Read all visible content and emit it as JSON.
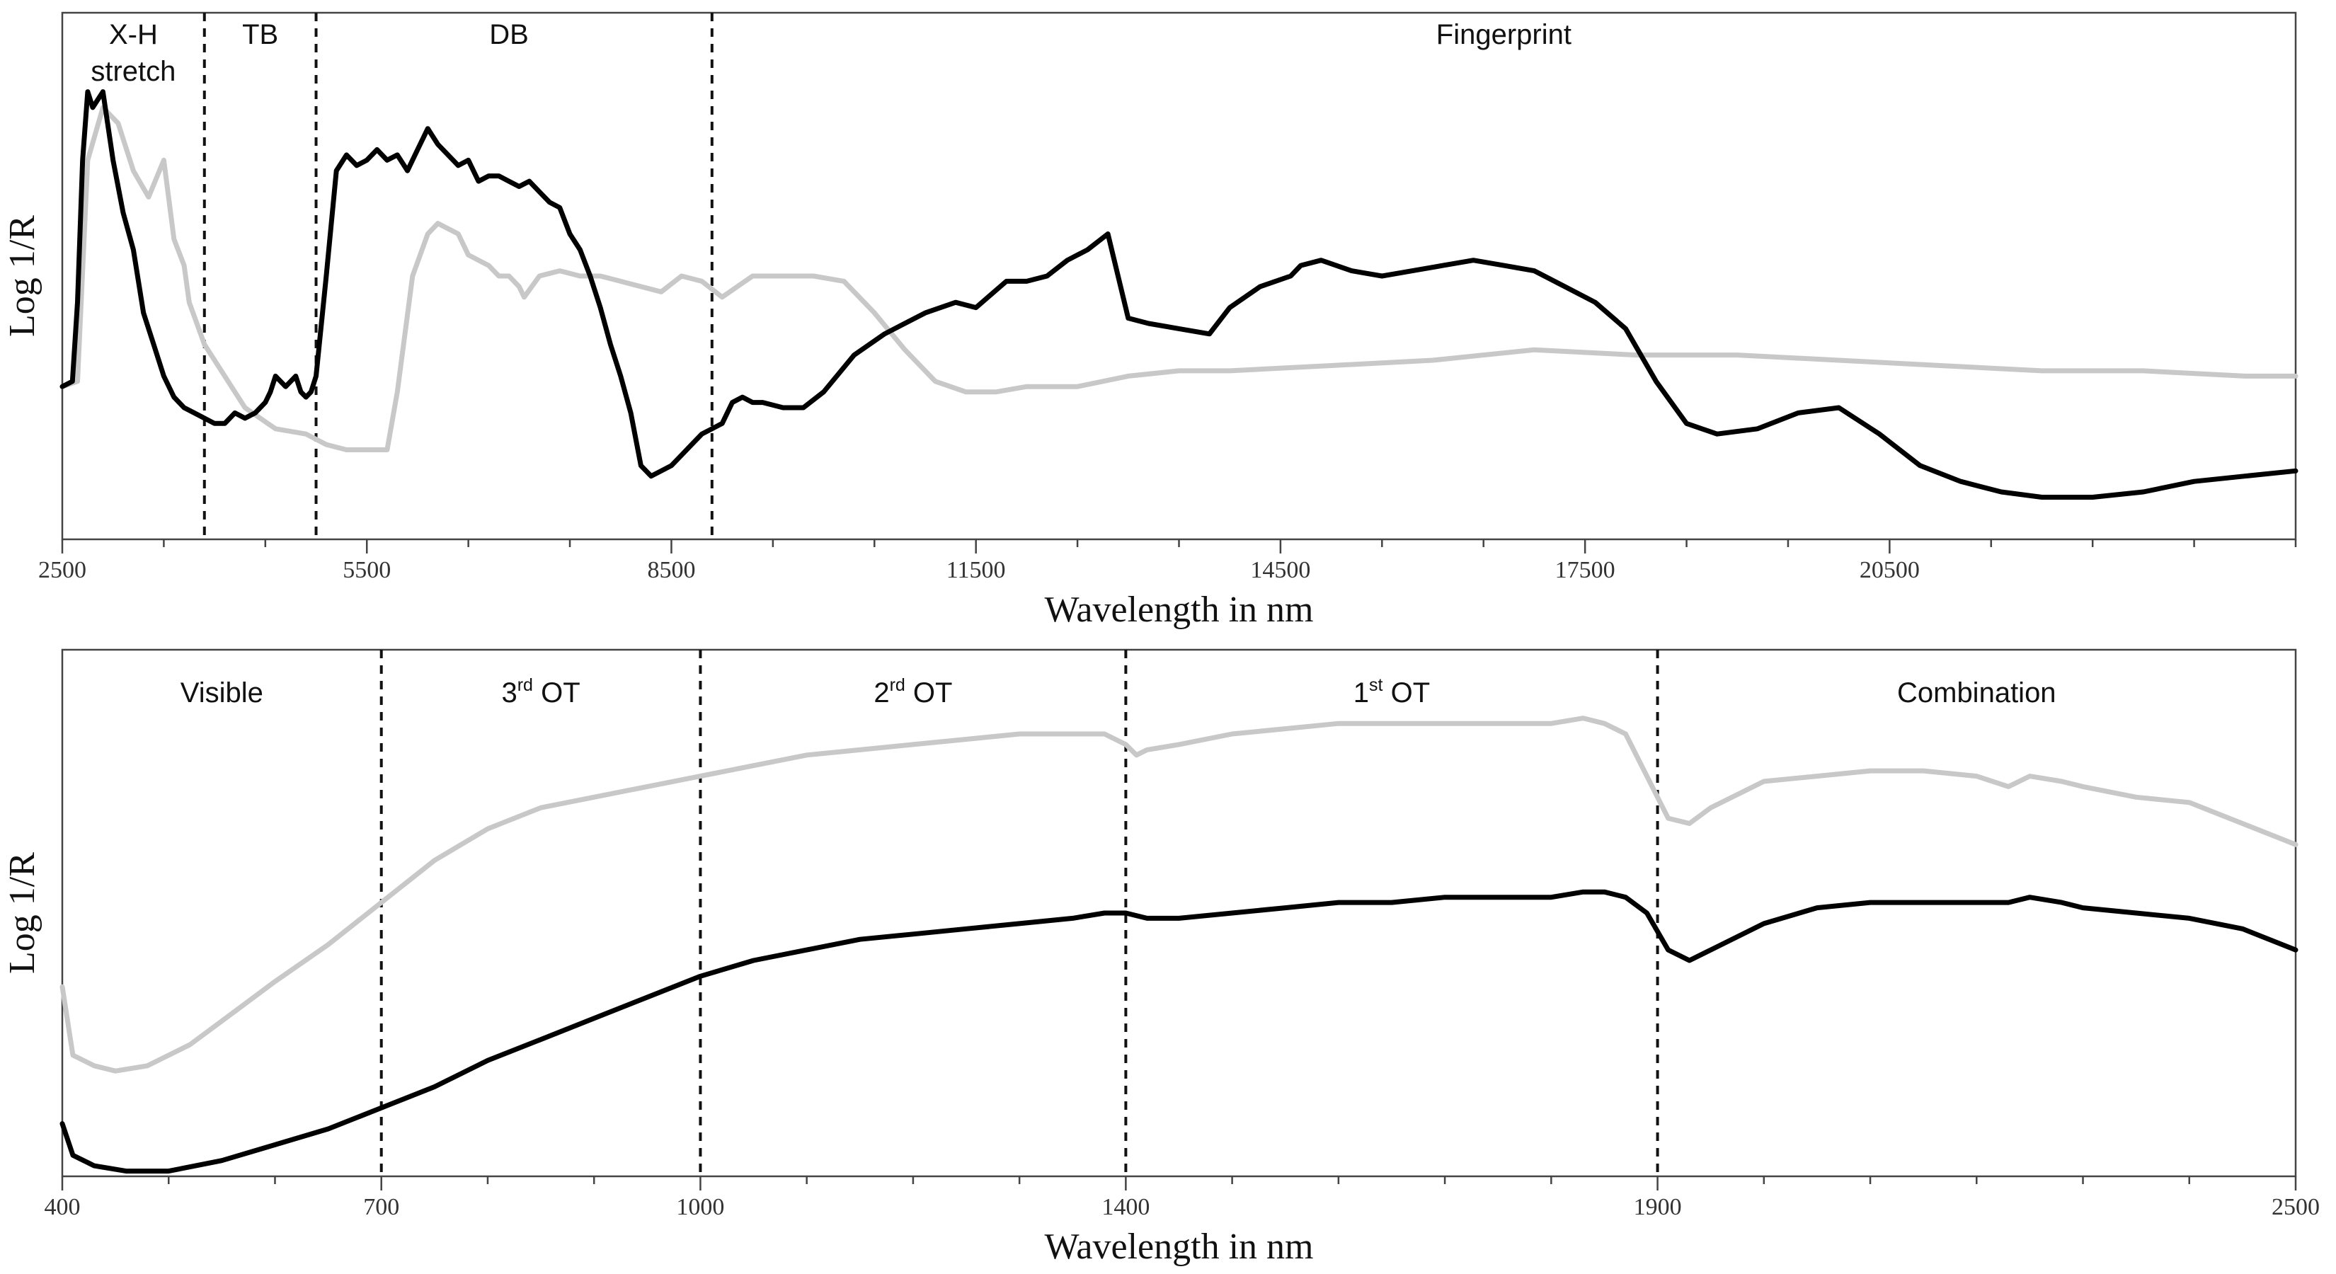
{
  "charts": [
    {
      "id": "top",
      "type": "line",
      "xlabel": "Wavelength in nm",
      "ylabel": "Log 1/R",
      "xlim": [
        2500,
        24500
      ],
      "ylim": [
        0,
        1
      ],
      "major_ticks": [
        2500,
        5500,
        8500,
        11500,
        14500,
        17500,
        20500
      ],
      "minor_tick_step": 1000,
      "dividers": [
        3900,
        5000,
        8900
      ],
      "regions": [
        {
          "lines": [
            "X-H",
            "stretch"
          ],
          "x": 3200
        },
        {
          "lines": [
            "TB"
          ],
          "x": 4450
        },
        {
          "lines": [
            "DB"
          ],
          "x": 6900
        },
        {
          "lines": [
            "Fingerprint"
          ],
          "x": 16700
        }
      ],
      "series": [
        {
          "color": "#c8c8c8",
          "x": [
            2500,
            2650,
            2750,
            2900,
            3050,
            3200,
            3350,
            3500,
            3600,
            3700,
            3750,
            3900,
            4100,
            4300,
            4600,
            4900,
            5100,
            5300,
            5500,
            5700,
            5800,
            5950,
            6100,
            6200,
            6400,
            6500,
            6700,
            6800,
            6900,
            7000,
            7050,
            7200,
            7400,
            7600,
            7800,
            8000,
            8200,
            8400,
            8600,
            8800,
            9000,
            9300,
            9600,
            9900,
            10200,
            10500,
            10800,
            11100,
            11400,
            11700,
            12000,
            12500,
            13000,
            13500,
            14000,
            15000,
            16000,
            17000,
            18000,
            19000,
            20000,
            21000,
            22000,
            23000,
            24000,
            24500
          ],
          "y": [
            0.29,
            0.3,
            0.72,
            0.82,
            0.79,
            0.7,
            0.65,
            0.72,
            0.57,
            0.52,
            0.45,
            0.37,
            0.31,
            0.25,
            0.21,
            0.2,
            0.18,
            0.17,
            0.17,
            0.17,
            0.28,
            0.5,
            0.58,
            0.6,
            0.58,
            0.54,
            0.52,
            0.5,
            0.5,
            0.48,
            0.46,
            0.5,
            0.51,
            0.5,
            0.5,
            0.49,
            0.48,
            0.47,
            0.5,
            0.49,
            0.46,
            0.5,
            0.5,
            0.5,
            0.49,
            0.43,
            0.36,
            0.3,
            0.28,
            0.28,
            0.29,
            0.29,
            0.31,
            0.32,
            0.32,
            0.33,
            0.34,
            0.36,
            0.35,
            0.35,
            0.34,
            0.33,
            0.32,
            0.32,
            0.31,
            0.31
          ]
        },
        {
          "color": "#000000",
          "x": [
            2500,
            2600,
            2650,
            2700,
            2750,
            2800,
            2900,
            3000,
            3100,
            3200,
            3300,
            3400,
            3500,
            3600,
            3700,
            3800,
            3900,
            4000,
            4100,
            4200,
            4300,
            4400,
            4500,
            4550,
            4600,
            4700,
            4800,
            4850,
            4900,
            4950,
            5000,
            5100,
            5200,
            5300,
            5400,
            5500,
            5600,
            5700,
            5800,
            5900,
            6000,
            6100,
            6200,
            6300,
            6400,
            6500,
            6600,
            6700,
            6800,
            6900,
            7000,
            7100,
            7200,
            7300,
            7400,
            7500,
            7600,
            7700,
            7800,
            7900,
            8000,
            8100,
            8200,
            8300,
            8400,
            8500,
            8600,
            8700,
            8800,
            8900,
            9000,
            9100,
            9200,
            9300,
            9400,
            9600,
            9800,
            10000,
            10300,
            10600,
            11000,
            11300,
            11500,
            11800,
            12000,
            12200,
            12400,
            12600,
            12800,
            13000,
            13200,
            13500,
            13800,
            14000,
            14300,
            14600,
            14700,
            14900,
            15200,
            15500,
            15800,
            16100,
            16400,
            16700,
            17000,
            17300,
            17600,
            17900,
            18200,
            18500,
            18800,
            19200,
            19600,
            20000,
            20400,
            20800,
            21200,
            21600,
            22000,
            22500,
            23000,
            23500,
            24000,
            24500
          ],
          "y": [
            0.29,
            0.3,
            0.45,
            0.72,
            0.85,
            0.82,
            0.85,
            0.72,
            0.62,
            0.55,
            0.43,
            0.37,
            0.31,
            0.27,
            0.25,
            0.24,
            0.23,
            0.22,
            0.22,
            0.24,
            0.23,
            0.24,
            0.26,
            0.28,
            0.31,
            0.29,
            0.31,
            0.28,
            0.27,
            0.28,
            0.31,
            0.5,
            0.7,
            0.73,
            0.71,
            0.72,
            0.74,
            0.72,
            0.73,
            0.7,
            0.74,
            0.78,
            0.75,
            0.73,
            0.71,
            0.72,
            0.68,
            0.69,
            0.69,
            0.68,
            0.67,
            0.68,
            0.66,
            0.64,
            0.63,
            0.58,
            0.55,
            0.5,
            0.44,
            0.37,
            0.31,
            0.24,
            0.14,
            0.12,
            0.13,
            0.14,
            0.16,
            0.18,
            0.2,
            0.21,
            0.22,
            0.26,
            0.27,
            0.26,
            0.26,
            0.25,
            0.25,
            0.28,
            0.35,
            0.39,
            0.43,
            0.45,
            0.44,
            0.49,
            0.49,
            0.5,
            0.53,
            0.55,
            0.58,
            0.42,
            0.41,
            0.4,
            0.39,
            0.44,
            0.48,
            0.5,
            0.52,
            0.53,
            0.51,
            0.5,
            0.51,
            0.52,
            0.53,
            0.52,
            0.51,
            0.48,
            0.45,
            0.4,
            0.3,
            0.22,
            0.2,
            0.21,
            0.24,
            0.25,
            0.2,
            0.14,
            0.11,
            0.09,
            0.08,
            0.08,
            0.09,
            0.11,
            0.12,
            0.13
          ]
        }
      ]
    },
    {
      "id": "bottom",
      "type": "line",
      "xlabel": "Wavelength in nm",
      "ylabel": "Log 1/R",
      "xlim": [
        400,
        2500
      ],
      "ylim": [
        0,
        1
      ],
      "major_ticks": [
        400,
        700,
        1000,
        1400,
        1900,
        2500
      ],
      "minor_tick_step": 100,
      "dividers": [
        700,
        1000,
        1400,
        1900
      ],
      "regions": [
        {
          "lines": [
            "Visible"
          ],
          "x": 550
        },
        {
          "pre": "3",
          "sup": "rd",
          "post": " OT",
          "x": 850
        },
        {
          "pre": "2",
          "sup": "rd",
          "post": " OT",
          "x": 1200
        },
        {
          "pre": "1",
          "sup": "st",
          "post": " OT",
          "x": 1650
        },
        {
          "lines": [
            "Combination"
          ],
          "x": 2200
        }
      ],
      "series": [
        {
          "color": "#c8c8c8",
          "x": [
            400,
            410,
            430,
            450,
            480,
            520,
            560,
            600,
            650,
            700,
            750,
            800,
            850,
            900,
            950,
            1000,
            1050,
            1100,
            1150,
            1200,
            1250,
            1300,
            1350,
            1380,
            1400,
            1410,
            1420,
            1450,
            1500,
            1550,
            1600,
            1650,
            1700,
            1750,
            1800,
            1830,
            1850,
            1870,
            1890,
            1910,
            1930,
            1950,
            2000,
            2050,
            2100,
            2150,
            2200,
            2230,
            2250,
            2280,
            2300,
            2350,
            2400,
            2450,
            2500
          ],
          "y": [
            0.36,
            0.23,
            0.21,
            0.2,
            0.21,
            0.25,
            0.31,
            0.37,
            0.44,
            0.52,
            0.6,
            0.66,
            0.7,
            0.72,
            0.74,
            0.76,
            0.78,
            0.8,
            0.81,
            0.82,
            0.83,
            0.84,
            0.84,
            0.84,
            0.82,
            0.8,
            0.81,
            0.82,
            0.84,
            0.85,
            0.86,
            0.86,
            0.86,
            0.86,
            0.86,
            0.87,
            0.86,
            0.84,
            0.76,
            0.68,
            0.67,
            0.7,
            0.75,
            0.76,
            0.77,
            0.77,
            0.76,
            0.74,
            0.76,
            0.75,
            0.74,
            0.72,
            0.71,
            0.67,
            0.63
          ]
        },
        {
          "color": "#000000",
          "x": [
            400,
            410,
            430,
            460,
            500,
            550,
            600,
            650,
            700,
            750,
            800,
            850,
            900,
            950,
            1000,
            1050,
            1100,
            1150,
            1200,
            1250,
            1300,
            1350,
            1380,
            1400,
            1420,
            1450,
            1500,
            1550,
            1600,
            1650,
            1700,
            1750,
            1800,
            1830,
            1850,
            1870,
            1890,
            1910,
            1930,
            1950,
            2000,
            2050,
            2100,
            2150,
            2200,
            2230,
            2250,
            2280,
            2300,
            2350,
            2400,
            2450,
            2500
          ],
          "y": [
            0.1,
            0.04,
            0.02,
            0.01,
            0.01,
            0.03,
            0.06,
            0.09,
            0.13,
            0.17,
            0.22,
            0.26,
            0.3,
            0.34,
            0.38,
            0.41,
            0.43,
            0.45,
            0.46,
            0.47,
            0.48,
            0.49,
            0.5,
            0.5,
            0.49,
            0.49,
            0.5,
            0.51,
            0.52,
            0.52,
            0.53,
            0.53,
            0.53,
            0.54,
            0.54,
            0.53,
            0.5,
            0.43,
            0.41,
            0.43,
            0.48,
            0.51,
            0.52,
            0.52,
            0.52,
            0.52,
            0.53,
            0.52,
            0.51,
            0.5,
            0.49,
            0.47,
            0.43
          ]
        }
      ]
    }
  ]
}
